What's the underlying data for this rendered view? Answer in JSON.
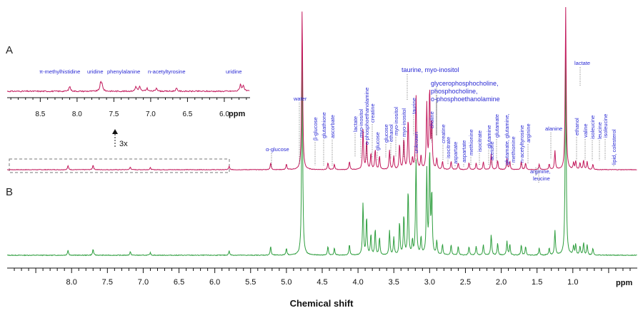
{
  "chart_data": {
    "type": "line",
    "panels": [
      {
        "label": "A",
        "series": [
          {
            "color": "#c2185b"
          }
        ]
      },
      {
        "label": "B",
        "series": [
          {
            "color": "#2e9e3e"
          }
        ]
      }
    ],
    "xlabel": "Chemical shift",
    "x_unit": "ppm",
    "x_axis_reversed": true,
    "xlim": [
      8.9,
      0.1
    ],
    "x_ticks": [
      "8.0",
      "7.5",
      "7.0",
      "6.5",
      "6.0",
      "5.5",
      "5.0",
      "4.5",
      "4.0",
      "3.5",
      "3.0",
      "2.5",
      "2.0",
      "1.5",
      "1.0"
    ],
    "inset": {
      "xlim": [
        8.95,
        5.65
      ],
      "x_ticks": [
        "8.5",
        "8.0",
        "7.5",
        "7.0",
        "6.5",
        "6.0"
      ],
      "unit": "ppm",
      "magnification": "3x",
      "labels": [
        "π-methylhistidine",
        "uridine",
        "phenylalanine",
        "n-acetyltyrosine",
        "uridine"
      ]
    },
    "peaks_ppm": [
      {
        "ppm": 8.05,
        "h": 0.03
      },
      {
        "ppm": 7.7,
        "h": 0.035
      },
      {
        "ppm": 7.18,
        "h": 0.02
      },
      {
        "ppm": 6.9,
        "h": 0.015
      },
      {
        "ppm": 5.8,
        "h": 0.025
      },
      {
        "ppm": 5.22,
        "h": 0.05
      },
      {
        "ppm": 5.0,
        "h": 0.04
      },
      {
        "ppm": 4.78,
        "h": 1.2
      },
      {
        "ppm": 4.42,
        "h": 0.05
      },
      {
        "ppm": 4.33,
        "h": 0.04
      },
      {
        "ppm": 4.12,
        "h": 0.06
      },
      {
        "ppm": 3.93,
        "h": 0.3
      },
      {
        "ppm": 3.88,
        "h": 0.22
      },
      {
        "ppm": 3.82,
        "h": 0.12
      },
      {
        "ppm": 3.76,
        "h": 0.15
      },
      {
        "ppm": 3.7,
        "h": 0.1
      },
      {
        "ppm": 3.56,
        "h": 0.14
      },
      {
        "ppm": 3.5,
        "h": 0.1
      },
      {
        "ppm": 3.42,
        "h": 0.19
      },
      {
        "ppm": 3.36,
        "h": 0.23
      },
      {
        "ppm": 3.3,
        "h": 0.38
      },
      {
        "ppm": 3.24,
        "h": 0.08
      },
      {
        "ppm": 3.19,
        "h": 0.55
      },
      {
        "ppm": 3.12,
        "h": 0.1
      },
      {
        "ppm": 3.04,
        "h": 0.48
      },
      {
        "ppm": 3.0,
        "h": 0.6
      },
      {
        "ppm": 2.97,
        "h": 0.35
      },
      {
        "ppm": 2.9,
        "h": 0.08
      },
      {
        "ppm": 2.82,
        "h": 0.06
      },
      {
        "ppm": 2.7,
        "h": 0.06
      },
      {
        "ppm": 2.6,
        "h": 0.05
      },
      {
        "ppm": 2.45,
        "h": 0.05
      },
      {
        "ppm": 2.35,
        "h": 0.05
      },
      {
        "ppm": 2.25,
        "h": 0.06
      },
      {
        "ppm": 2.14,
        "h": 0.12
      },
      {
        "ppm": 2.05,
        "h": 0.07
      },
      {
        "ppm": 1.92,
        "h": 0.08
      },
      {
        "ppm": 1.88,
        "h": 0.06
      },
      {
        "ppm": 1.72,
        "h": 0.06
      },
      {
        "ppm": 1.66,
        "h": 0.05
      },
      {
        "ppm": 1.47,
        "h": 0.04
      },
      {
        "ppm": 1.33,
        "h": 0.04
      },
      {
        "ppm": 1.25,
        "h": 0.14
      },
      {
        "ppm": 1.1,
        "h": 1.2
      },
      {
        "ppm": 0.99,
        "h": 0.05
      },
      {
        "ppm": 0.96,
        "h": 0.06
      },
      {
        "ppm": 0.9,
        "h": 0.05
      },
      {
        "ppm": 0.85,
        "h": 0.07
      },
      {
        "ppm": 0.8,
        "h": 0.06
      },
      {
        "ppm": 0.72,
        "h": 0.04
      }
    ],
    "annotations": [
      {
        "text": "water",
        "ppm": 4.78
      },
      {
        "text": "α-glucose",
        "ppm": 5.22
      },
      {
        "text": "β-glucose",
        "ppm": 4.63
      },
      {
        "text": "glutathione",
        "ppm": 4.5
      },
      {
        "text": "ascorbate",
        "ppm": 4.36
      },
      {
        "text": "lactate",
        "ppm": 4.12
      },
      {
        "text": "myo-inositol",
        "ppm": 4.05
      },
      {
        "text": "o-phosphoethanolamine",
        "ppm": 3.99
      },
      {
        "text": "creatine",
        "ppm": 3.93
      },
      {
        "text": "glucose",
        "ppm": 3.83
      },
      {
        "text": "glucose",
        "ppm": 3.72
      },
      {
        "text": "ethanol",
        "ppm": 3.65
      },
      {
        "text": "myo-inositol",
        "ppm": 3.55
      },
      {
        "text": "myo-inositol",
        "ppm": 3.45
      },
      {
        "text": "taurine",
        "ppm": 3.26
      },
      {
        "text": "unknown",
        "ppm": 3.35
      },
      {
        "text": "taurine, myo-inositol",
        "ppm": 3.27
      },
      {
        "text": "glycerophosphocholine,",
        "ppm": 3.2
      },
      {
        "text": "phosphocholine,",
        "ppm": 3.2
      },
      {
        "text": "o-phosphoethanolamine",
        "ppm": 3.2
      },
      {
        "text": "choline",
        "ppm": 3.0
      },
      {
        "text": "creatine",
        "ppm": 2.85
      },
      {
        "text": "isocitrate",
        "ppm": 2.7
      },
      {
        "text": "aspartate",
        "ppm": 2.68
      },
      {
        "text": "aspartate",
        "ppm": 2.58
      },
      {
        "text": "methionine",
        "ppm": 2.5
      },
      {
        "text": "isocitrate",
        "ppm": 2.42
      },
      {
        "text": "glutamine",
        "ppm": 2.3
      },
      {
        "text": "acetone",
        "ppm": 2.22
      },
      {
        "text": "glutamate",
        "ppm": 2.15
      },
      {
        "text": "glutamate, glutamine,",
        "ppm": 2.05
      },
      {
        "text": "methionine",
        "ppm": 1.98
      },
      {
        "text": "n-acetyltyrosine",
        "ppm": 1.88
      },
      {
        "text": "arginine",
        "ppm": 1.78
      },
      {
        "text": "arginine,",
        "ppm": 1.7
      },
      {
        "text": "leucine",
        "ppm": 1.7
      },
      {
        "text": "alanine",
        "ppm": 1.47
      },
      {
        "text": "lactate",
        "ppm": 1.33
      },
      {
        "text": "ethanol",
        "ppm": 1.18
      },
      {
        "text": "valine",
        "ppm": 1.04
      },
      {
        "text": "isoleucine",
        "ppm": 0.99
      },
      {
        "text": "leucine",
        "ppm": 0.94
      },
      {
        "text": "isoleucine",
        "ppm": 0.91
      },
      {
        "text": "lipid, colesterol",
        "ppm": 0.86
      }
    ]
  }
}
